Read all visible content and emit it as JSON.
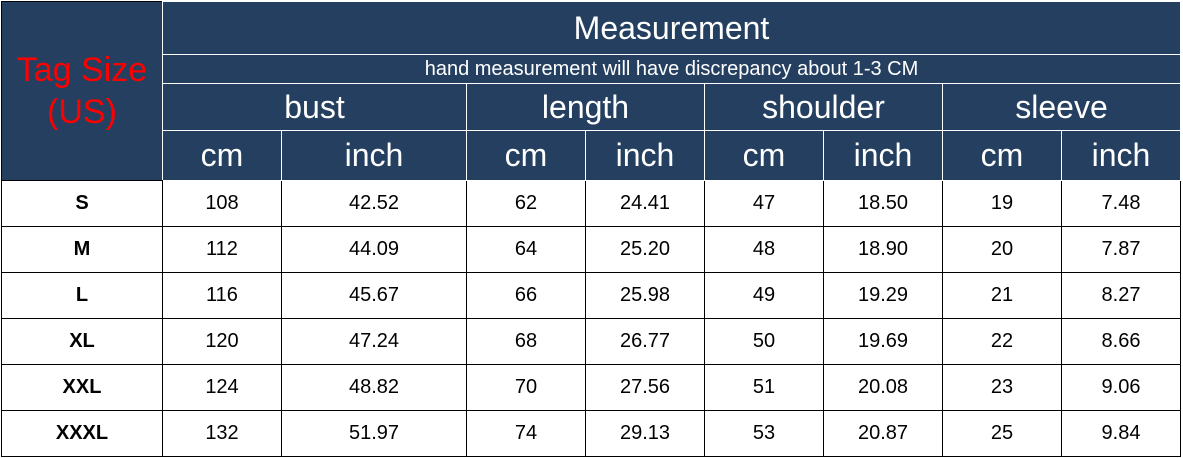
{
  "header": {
    "tag_size": "Tag Size (US)",
    "title": "Measurement",
    "subtitle": "hand measurement will have discrepancy about 1-3 CM",
    "groups": [
      "bust",
      "length",
      "shoulder",
      "sleeve"
    ],
    "units": [
      "cm",
      "inch",
      "cm",
      "inch",
      "cm",
      "inch",
      "cm",
      "inch"
    ]
  },
  "colors": {
    "header_bg": "#243f60",
    "tag_text": "#ff0000",
    "header_text": "#ffffff"
  },
  "rows": [
    [
      "S",
      "108",
      "42.52",
      "62",
      "24.41",
      "47",
      "18.50",
      "19",
      "7.48"
    ],
    [
      "M",
      "112",
      "44.09",
      "64",
      "25.20",
      "48",
      "18.90",
      "20",
      "7.87"
    ],
    [
      "L",
      "116",
      "45.67",
      "66",
      "25.98",
      "49",
      "19.29",
      "21",
      "8.27"
    ],
    [
      "XL",
      "120",
      "47.24",
      "68",
      "26.77",
      "50",
      "19.69",
      "22",
      "8.66"
    ],
    [
      "XXL",
      "124",
      "48.82",
      "70",
      "27.56",
      "51",
      "20.08",
      "23",
      "9.06"
    ],
    [
      "XXXL",
      "132",
      "51.97",
      "74",
      "29.13",
      "53",
      "20.87",
      "25",
      "9.84"
    ]
  ]
}
